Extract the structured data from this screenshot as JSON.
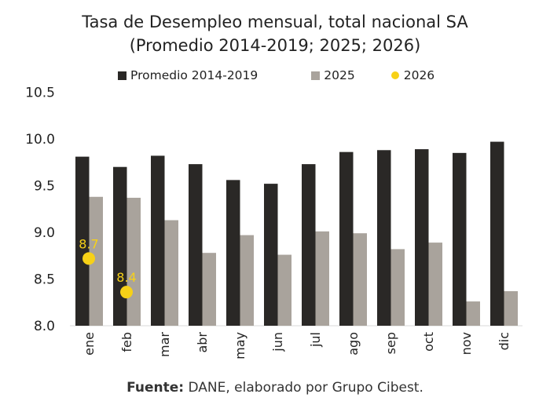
{
  "chart_data": {
    "type": "bar",
    "title": "Tasa de Desempleo mensual, total nacional SA",
    "subtitle": "(Promedio 2014-2019; 2025; 2026)",
    "categories": [
      "ene",
      "feb",
      "mar",
      "abr",
      "may",
      "jun",
      "jul",
      "ago",
      "sep",
      "oct",
      "nov",
      "dic"
    ],
    "series": [
      {
        "name": "Promedio 2014-2019",
        "type": "bar",
        "color": "#2a2826",
        "values": [
          9.81,
          9.7,
          9.82,
          9.73,
          9.56,
          9.52,
          9.73,
          9.86,
          9.88,
          9.89,
          9.85,
          9.97
        ]
      },
      {
        "name": "2025",
        "type": "bar",
        "color": "#a9a39c",
        "values": [
          9.38,
          9.37,
          9.13,
          8.78,
          8.97,
          8.76,
          9.01,
          8.99,
          8.82,
          8.89,
          8.26,
          8.37
        ]
      },
      {
        "name": "2026",
        "type": "scatter",
        "color": "#f7d117",
        "values": [
          8.72,
          8.36
        ],
        "data_labels": [
          "8.7",
          "8.4"
        ]
      }
    ],
    "ylim": [
      8.0,
      10.5
    ],
    "yticks": [
      "8.0",
      "8.5",
      "9.0",
      "9.5",
      "10.0",
      "10.5"
    ],
    "grid": false,
    "legend": "top"
  },
  "source": {
    "label": "Fuente:",
    "text": " DANE, elaborado por Grupo Cibest."
  }
}
